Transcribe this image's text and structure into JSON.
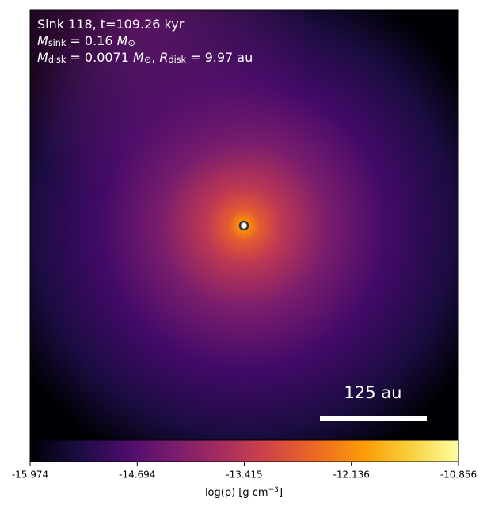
{
  "chart_data": {
    "type": "image",
    "colormap": "inferno",
    "annotations": [
      [
        "Sink 118, t=109.26 kyr"
      ],
      [
        "M",
        {
          "sub": "sink"
        },
        " = 0.16 ",
        "M",
        {
          "sub": "⊙"
        }
      ],
      [
        "M",
        {
          "sub": "disk"
        },
        " = 0.0071 ",
        "M",
        {
          "sub": "⊙"
        },
        ", ",
        "R",
        {
          "sub": "disk"
        },
        " = 9.97 au"
      ]
    ],
    "scale_bar_label": "125 au",
    "colorbar": {
      "label": [
        "log(ρ) [g cm",
        {
          "sup": "−3"
        },
        "]"
      ],
      "lim": [
        -15.974,
        -10.856
      ],
      "ticks": [
        -15.974,
        -14.694,
        -13.415,
        -12.136,
        -10.856
      ]
    }
  }
}
